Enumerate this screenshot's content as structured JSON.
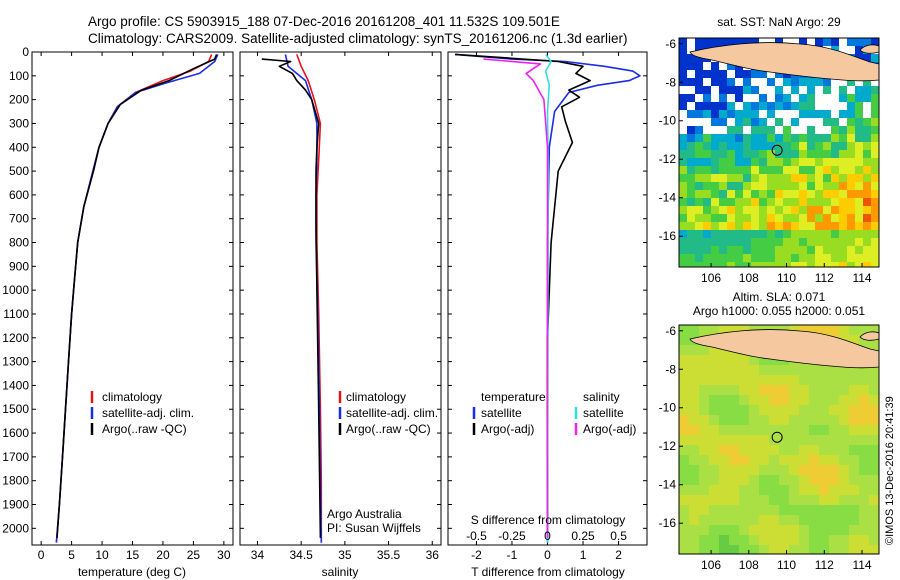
{
  "header": {
    "line1": "Argo profile: CS 5903915_188 07-Dec-2016 20161208_401 11.532S 109.501E",
    "line2": "Climatology: CARS2009. Satellite-adjusted climatology: synTS_20161206.nc (1.3d earlier)"
  },
  "colors": {
    "climatology": "#e8141c",
    "satellite": "#1c2ce8",
    "argo": "#000000",
    "sal_satellite": "#33dddd",
    "sal_argo": "#ee22ee",
    "land": "#f5c8a0"
  },
  "chart_data": [
    {
      "type": "line",
      "id": "temperature",
      "xlabel": "temperature (deg C)",
      "xlim": [
        -1.5,
        31.5
      ],
      "xticks": [
        0,
        5,
        10,
        15,
        20,
        25,
        30
      ],
      "xticklabels": [
        "0",
        "5",
        "10",
        "15",
        "20",
        "25",
        "30"
      ],
      "ylim": [
        2070,
        0
      ],
      "yticks": [
        0,
        100,
        200,
        300,
        400,
        500,
        600,
        700,
        800,
        900,
        1000,
        1100,
        1200,
        1300,
        1400,
        1500,
        1600,
        1700,
        1800,
        1900,
        2000
      ],
      "yticklabels": [
        "0",
        "100",
        "200",
        "300",
        "400",
        "500",
        "600",
        "700",
        "800",
        "900",
        "1000",
        "1100",
        "1200",
        "1300",
        "1400",
        "1500",
        "1600",
        "1700",
        "1800",
        "1900",
        "2000"
      ],
      "legend": [
        "climatology",
        "satellite-adj. clim.",
        "Argo(..raw -QC)"
      ],
      "series": [
        {
          "name": "climatology",
          "color": "#e8141c",
          "x": [
            28.0,
            27.5,
            24.5,
            20.0,
            15.5,
            12.5,
            11.0,
            9.5,
            8.5,
            7.0,
            6.0,
            5.5,
            5.0,
            4.5,
            4.0,
            3.5,
            3.0,
            2.5
          ],
          "y": [
            10,
            40,
            80,
            120,
            170,
            230,
            300,
            400,
            500,
            650,
            800,
            950,
            1100,
            1300,
            1500,
            1700,
            1900,
            2060
          ]
        },
        {
          "name": "satellite-adj. clim.",
          "color": "#1c2ce8",
          "x": [
            29.0,
            28.5,
            26.0,
            20.5,
            15.5,
            12.5,
            11.0,
            9.5,
            8.5,
            7.0,
            6.0,
            5.5,
            5.0,
            4.5,
            4.0,
            3.5,
            3.0,
            2.5
          ],
          "y": [
            10,
            40,
            90,
            130,
            170,
            230,
            300,
            400,
            500,
            650,
            800,
            950,
            1100,
            1300,
            1500,
            1700,
            1900,
            2060
          ]
        },
        {
          "name": "Argo(..raw -QC)",
          "color": "#000000",
          "x": [
            28.8,
            28.5,
            25.0,
            21.0,
            16.5,
            13.0,
            11.0,
            9.5,
            8.6,
            7.0,
            6.0,
            5.5,
            5.0,
            4.5,
            4.0,
            3.5,
            3.0,
            2.6
          ],
          "y": [
            10,
            30,
            70,
            120,
            160,
            220,
            300,
            400,
            500,
            650,
            800,
            950,
            1100,
            1300,
            1500,
            1700,
            1900,
            2040
          ]
        }
      ]
    },
    {
      "type": "line",
      "id": "salinity",
      "xlabel": "salinity",
      "xlim": [
        33.8,
        36.1
      ],
      "xticks": [
        34,
        34.5,
        35,
        35.5,
        36
      ],
      "xticklabels": [
        "34",
        "34.5",
        "35",
        "35.5",
        "36"
      ],
      "ylim": [
        2070,
        0
      ],
      "legend": [
        "climatology",
        "satellite-adj. clim.",
        "Argo(..raw -QC)"
      ],
      "annotation": [
        "Argo Australia",
        "PI: Susan Wijffels"
      ],
      "series": [
        {
          "name": "climatology",
          "color": "#e8141c",
          "x": [
            34.45,
            34.5,
            34.58,
            34.65,
            34.72,
            34.7,
            34.68,
            34.68,
            34.7,
            34.72,
            34.73,
            34.73
          ],
          "y": [
            10,
            60,
            120,
            200,
            300,
            450,
            600,
            800,
            1100,
            1500,
            1800,
            2060
          ]
        },
        {
          "name": "satellite-adj. clim.",
          "color": "#1c2ce8",
          "x": [
            34.32,
            34.35,
            34.55,
            34.62,
            34.68,
            34.68,
            34.67,
            34.67,
            34.69,
            34.71,
            34.72,
            34.73
          ],
          "y": [
            10,
            60,
            120,
            200,
            300,
            450,
            600,
            800,
            1100,
            1500,
            1800,
            2060
          ]
        },
        {
          "name": "Argo(..raw -QC)",
          "color": "#000000",
          "x": [
            34.05,
            34.38,
            34.25,
            34.4,
            34.45,
            34.55,
            34.62,
            34.66,
            34.7,
            34.68,
            34.67,
            34.67,
            34.68,
            34.7,
            34.72
          ],
          "y": [
            30,
            40,
            60,
            90,
            120,
            160,
            200,
            250,
            300,
            400,
            500,
            700,
            1000,
            1500,
            2040
          ]
        }
      ]
    },
    {
      "type": "line",
      "id": "difference",
      "xlabel": "T difference from climatology",
      "xlabel_top": "S difference from climatology",
      "xlim": [
        -2.8,
        2.8
      ],
      "xticks": [
        -2,
        -1,
        0,
        1,
        2
      ],
      "xticklabels": [
        "-2",
        "-1",
        "0",
        "1",
        "2"
      ],
      "sticks": [
        -0.5,
        -0.25,
        0,
        0.25,
        0.5
      ],
      "sticklabels": [
        "-0.5",
        "-0.25",
        "0",
        "0.25",
        "0.5"
      ],
      "ylim": [
        2070,
        0
      ],
      "legend_headers": [
        "temperature",
        "salinity"
      ],
      "legend": [
        "satellite",
        "Argo(-adj)",
        "satellite",
        "Argo(-adj)"
      ],
      "series": [
        {
          "name": "satellite",
          "color": "#1c2ce8",
          "x": [
            -2.6,
            -1.0,
            0.5,
            1.6,
            2.4,
            2.6,
            2.3,
            1.4,
            0.6,
            0.2,
            0.05,
            0,
            0
          ],
          "y": [
            10,
            30,
            40,
            60,
            80,
            100,
            120,
            140,
            170,
            250,
            400,
            800,
            2060
          ]
        },
        {
          "name": "Argo(-adj)",
          "color": "#000000",
          "x": [
            -2.6,
            0.3,
            1.0,
            0.8,
            1.2,
            0.6,
            0.9,
            0.4,
            0.5,
            0.7,
            0.3,
            0.1,
            0,
            0
          ],
          "y": [
            10,
            40,
            60,
            90,
            120,
            160,
            190,
            230,
            290,
            380,
            500,
            800,
            1200,
            2040
          ]
        },
        {
          "name": "satellite",
          "color": "#33dddd",
          "x": [
            -0.05,
            0.1,
            -0.05,
            0.05,
            0,
            0.02,
            0
          ],
          "y": [
            10,
            40,
            80,
            140,
            250,
            500,
            2060
          ]
        },
        {
          "name": "Argo(-adj)",
          "color": "#ee22ee",
          "x": [
            -1.8,
            -0.2,
            -0.6,
            -0.4,
            -0.1,
            0,
            0
          ],
          "y": [
            30,
            50,
            90,
            120,
            200,
            400,
            2040
          ]
        }
      ]
    },
    {
      "type": "heatmap",
      "id": "sst-map",
      "title": "sat. SST: NaN Argo: 29",
      "xlim": [
        104.3,
        114.9
      ],
      "ylim": [
        -17.6,
        -5.7
      ],
      "xticks": [
        106,
        108,
        110,
        112,
        114
      ],
      "xticklabels": [
        "106",
        "108",
        "110",
        "112",
        "114"
      ],
      "yticks": [
        -6,
        -8,
        -10,
        -12,
        -14,
        -16
      ],
      "yticklabels": [
        "-6",
        "-8",
        "-10",
        "-12",
        "-14",
        "-16"
      ],
      "marker": {
        "lon": 109.501,
        "lat": -11.532
      }
    },
    {
      "type": "heatmap",
      "id": "sla-map",
      "title": "Altim. SLA: 0.071",
      "subtitle": "Argo h1000: 0.055 h2000: 0.051",
      "xlim": [
        104.3,
        114.9
      ],
      "ylim": [
        -17.6,
        -5.7
      ],
      "xticks": [
        106,
        108,
        110,
        112,
        114
      ],
      "xticklabels": [
        "106",
        "108",
        "110",
        "112",
        "114"
      ],
      "yticks": [
        -6,
        -8,
        -10,
        -12,
        -14,
        -16
      ],
      "yticklabels": [
        "-6",
        "-8",
        "-10",
        "-12",
        "-14",
        "-16"
      ],
      "marker": {
        "lon": 109.501,
        "lat": -11.532
      }
    }
  ],
  "credit": "©IMOS 13-Dec-2016 20:41:39"
}
